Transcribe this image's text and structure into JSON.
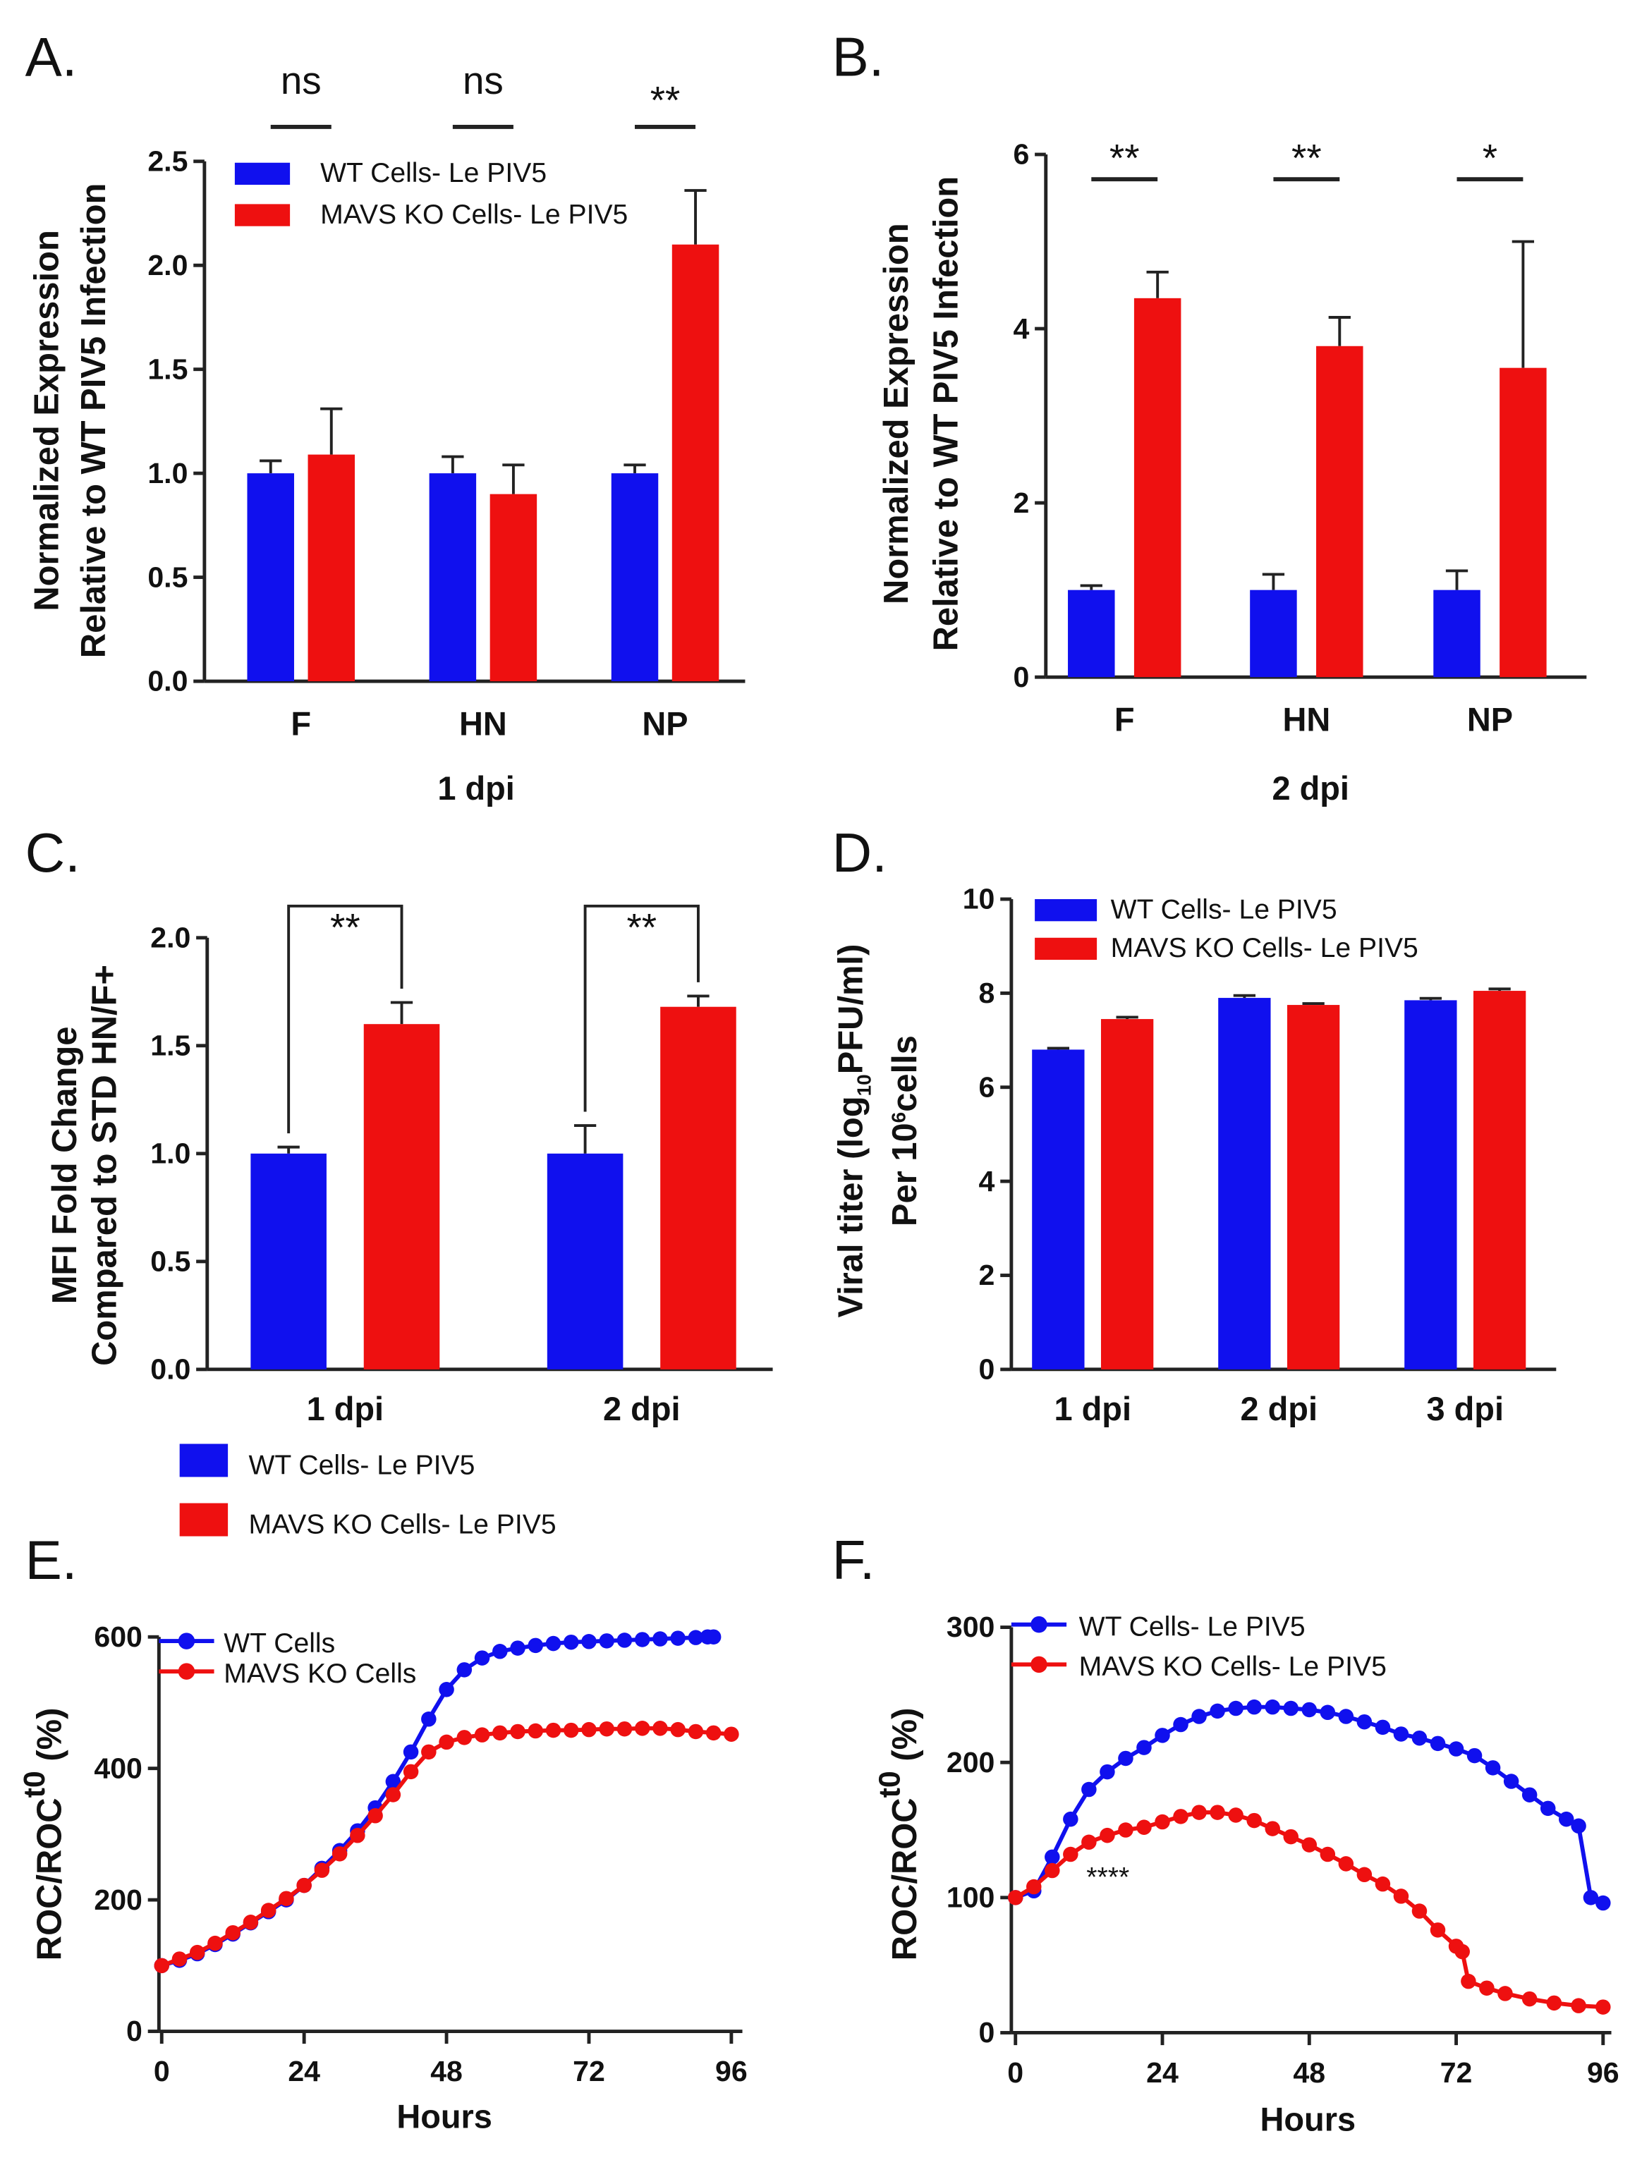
{
  "colors": {
    "wt": "#1010ee",
    "mavs": "#ee1010",
    "axis": "#222222"
  },
  "chart_data": [
    {
      "panel": "A.",
      "type": "bar",
      "categories": [
        "F",
        "HN",
        "NP"
      ],
      "xlabel": "1 dpi",
      "ylabel": [
        "Normalized Expression",
        "Relative to WT PIV5 Infection"
      ],
      "ylim": [
        0,
        2.5
      ],
      "yticks": [
        "0.0",
        "0.5",
        "1.0",
        "1.5",
        "2.0",
        "2.5"
      ],
      "ytick_values": [
        0,
        0.5,
        1,
        1.5,
        2,
        2.5
      ],
      "series": [
        {
          "name": "WT Cells- Le PIV5",
          "values": [
            1.0,
            1.0,
            1.0
          ],
          "errors": [
            0.06,
            0.08,
            0.04
          ]
        },
        {
          "name": "MAVS KO Cells- Le PIV5",
          "values": [
            1.09,
            0.9,
            2.1
          ],
          "errors": [
            0.22,
            0.14,
            0.26
          ]
        }
      ],
      "significance": [
        "ns",
        "ns",
        "**"
      ],
      "legend": "top-left"
    },
    {
      "panel": "B.",
      "type": "bar",
      "categories": [
        "F",
        "HN",
        "NP"
      ],
      "xlabel": "2 dpi",
      "ylabel": [
        "Normalized Expression",
        "Relative to WT PIV5 Infection"
      ],
      "ylim": [
        0,
        6
      ],
      "yticks": [
        "0",
        "2",
        "4",
        "6"
      ],
      "ytick_values": [
        0,
        2,
        4,
        6
      ],
      "series": [
        {
          "name": "WT Cells- Le PIV5",
          "values": [
            1.0,
            1.0,
            1.0
          ],
          "errors": [
            0.05,
            0.18,
            0.22
          ]
        },
        {
          "name": "MAVS KO Cells- Le PIV5",
          "values": [
            4.35,
            3.8,
            3.55
          ],
          "errors": [
            0.3,
            0.33,
            1.45
          ]
        }
      ],
      "significance": [
        "**",
        "**",
        "*"
      ]
    },
    {
      "panel": "C.",
      "type": "bar",
      "categories": [
        "1 dpi",
        "2 dpi"
      ],
      "xlabel": "",
      "ylabel": [
        "MFI Fold Change",
        "Compared to STD HN/F+"
      ],
      "ylim": [
        0,
        2
      ],
      "yticks": [
        "0.0",
        "0.5",
        "1.0",
        "1.5",
        "2.0"
      ],
      "ytick_values": [
        0,
        0.5,
        1,
        1.5,
        2
      ],
      "series": [
        {
          "name": "WT Cells- Le PIV5",
          "values": [
            1.0,
            1.0
          ],
          "errors": [
            0.03,
            0.13
          ]
        },
        {
          "name": "MAVS KO Cells- Le PIV5",
          "values": [
            1.6,
            1.68
          ],
          "errors": [
            0.1,
            0.05
          ]
        }
      ],
      "significance": [
        "**",
        "**"
      ],
      "legend": "bottom"
    },
    {
      "panel": "D.",
      "type": "bar",
      "categories": [
        "1 dpi",
        "2 dpi",
        "3 dpi"
      ],
      "xlabel": "",
      "ylabel": [
        "Viral titer (log",
        "10",
        "PFU/ml)",
        "Per 10",
        "6",
        "cells"
      ],
      "ylim": [
        0,
        10
      ],
      "yticks": [
        "0",
        "2",
        "4",
        "6",
        "8",
        "10"
      ],
      "ytick_values": [
        0,
        2,
        4,
        6,
        8,
        10
      ],
      "series": [
        {
          "name": "WT Cells- Le PIV5",
          "values": [
            6.8,
            7.9,
            7.85
          ],
          "errors": [
            0.03,
            0.05,
            0.04
          ]
        },
        {
          "name": "MAVS KO Cells- Le PIV5",
          "values": [
            7.45,
            7.75,
            8.05
          ],
          "errors": [
            0.04,
            0.03,
            0.04
          ]
        }
      ],
      "legend": "top-left"
    },
    {
      "panel": "E.",
      "type": "line",
      "xlabel": "Hours",
      "ylabel": [
        "ROC/ROC",
        "t0",
        " (%)"
      ],
      "xlim": [
        0,
        96
      ],
      "ylim": [
        0,
        600
      ],
      "xticks": [
        "0",
        "24",
        "48",
        "72",
        "96"
      ],
      "xtick_values": [
        0,
        24,
        48,
        72,
        96
      ],
      "yticks": [
        "0",
        "200",
        "400",
        "600"
      ],
      "ytick_values": [
        0,
        200,
        400,
        600
      ],
      "series": [
        {
          "name": "WT Cells",
          "x": [
            0,
            3,
            6,
            9,
            12,
            15,
            18,
            21,
            24,
            27,
            30,
            33,
            36,
            39,
            42,
            45,
            48,
            51,
            54,
            57,
            60,
            63,
            66,
            69,
            72,
            75,
            78,
            81,
            84,
            87,
            90,
            92,
            93
          ],
          "y": [
            100,
            108,
            118,
            132,
            148,
            165,
            182,
            200,
            222,
            248,
            275,
            305,
            340,
            380,
            425,
            475,
            520,
            550,
            568,
            578,
            583,
            587,
            590,
            592,
            593,
            594,
            595,
            596,
            597,
            598,
            599,
            600,
            600
          ]
        },
        {
          "name": "MAVS KO Cells",
          "x": [
            0,
            3,
            6,
            9,
            12,
            15,
            18,
            21,
            24,
            27,
            30,
            33,
            36,
            39,
            42,
            45,
            48,
            51,
            54,
            57,
            60,
            63,
            66,
            69,
            72,
            75,
            78,
            81,
            84,
            87,
            90,
            93,
            96
          ],
          "y": [
            100,
            110,
            120,
            134,
            150,
            166,
            184,
            202,
            222,
            245,
            270,
            298,
            328,
            360,
            395,
            425,
            440,
            447,
            451,
            454,
            456,
            457,
            458,
            458,
            459,
            460,
            460,
            461,
            461,
            459,
            456,
            454,
            452
          ]
        }
      ],
      "legend": "top-left"
    },
    {
      "panel": "F.",
      "type": "line",
      "xlabel": "Hours",
      "ylabel": [
        "ROC/ROC",
        "t0",
        " (%)"
      ],
      "xlim": [
        0,
        96
      ],
      "ylim": [
        0,
        300
      ],
      "xticks": [
        "0",
        "24",
        "48",
        "72",
        "96"
      ],
      "xtick_values": [
        0,
        24,
        48,
        72,
        96
      ],
      "yticks": [
        "0",
        "100",
        "200",
        "300"
      ],
      "ytick_values": [
        0,
        100,
        200,
        300
      ],
      "annotation": "****",
      "series": [
        {
          "name": "WT Cells- Le PIV5",
          "x": [
            0,
            3,
            6,
            9,
            12,
            15,
            18,
            21,
            24,
            27,
            30,
            33,
            36,
            39,
            42,
            45,
            48,
            51,
            54,
            57,
            60,
            63,
            66,
            69,
            72,
            75,
            78,
            81,
            84,
            87,
            90,
            92,
            94,
            96
          ],
          "y": [
            100,
            105,
            130,
            158,
            180,
            193,
            203,
            211,
            220,
            228,
            234,
            238,
            240,
            241,
            241,
            240,
            239,
            237,
            234,
            230,
            226,
            221,
            218,
            214,
            210,
            205,
            196,
            186,
            176,
            166,
            158,
            153,
            100,
            96
          ]
        },
        {
          "name": "MAVS KO Cells- Le PIV5",
          "x": [
            0,
            3,
            6,
            9,
            12,
            15,
            18,
            21,
            24,
            27,
            30,
            33,
            36,
            39,
            42,
            45,
            48,
            51,
            54,
            57,
            60,
            63,
            66,
            69,
            72,
            73,
            74,
            77,
            80,
            84,
            88,
            92,
            96
          ],
          "y": [
            100,
            108,
            120,
            132,
            141,
            146,
            150,
            152,
            156,
            160,
            163,
            163,
            161,
            157,
            151,
            145,
            139,
            132,
            125,
            117,
            110,
            101,
            90,
            76,
            64,
            60,
            38,
            33,
            29,
            25,
            22,
            20,
            19
          ]
        }
      ],
      "legend": "top-left"
    }
  ]
}
